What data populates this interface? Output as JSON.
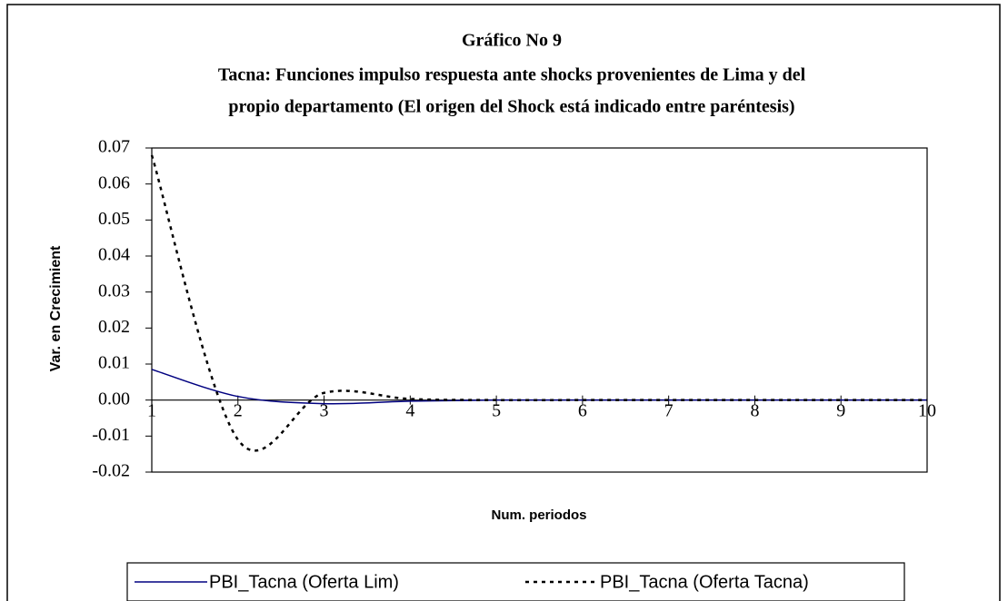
{
  "chart_data": {
    "type": "line",
    "title": "Gráfico No 9",
    "subtitle": [
      "Tacna: Funciones impulso respuesta ante shocks  provenientes de Lima y del",
      "propio departamento (El origen del Shock está indicado entre paréntesis)"
    ],
    "x_label": "Num. periodos",
    "y_label": "Var. en Crecimient",
    "x": [
      1,
      2,
      3,
      4,
      5,
      6,
      7,
      8,
      9,
      10
    ],
    "series": [
      {
        "name": "PBI_Tacna (Oferta Lim)",
        "color": "#000080",
        "dash": "solid",
        "values": [
          0.0085,
          0.001,
          -0.001,
          -0.0003,
          0,
          0,
          0,
          0,
          0,
          0
        ]
      },
      {
        "name": "PBI_Tacna (Oferta Tacna)",
        "color": "#000000",
        "dash": "dotted",
        "values": [
          0.068,
          -0.011,
          0.002,
          0.0003,
          0,
          0,
          0,
          0,
          0,
          0
        ]
      }
    ],
    "xlim": [
      1,
      10
    ],
    "xticks": [
      1,
      2,
      3,
      4,
      5,
      6,
      7,
      8,
      9,
      10
    ],
    "ylim": [
      -0.02,
      0.07
    ],
    "yticks": [
      0.07,
      0.06,
      0.05,
      0.04,
      0.03,
      0.02,
      0.01,
      {
        "value": 0,
        "label": "0.00"
      },
      -0.01,
      -0.02
    ],
    "legend": "bottom"
  }
}
